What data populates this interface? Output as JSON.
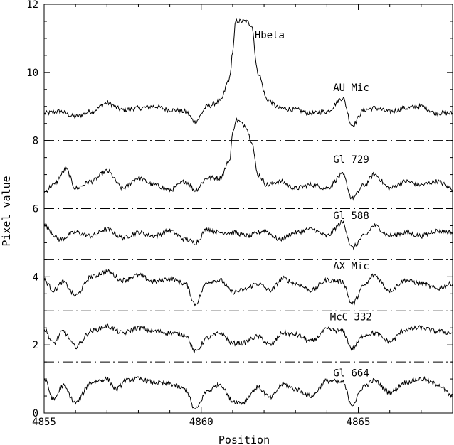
{
  "chart_data": {
    "type": "line",
    "title": "",
    "xlabel": "Position",
    "ylabel": "Pixel value",
    "xlim": [
      4855,
      4868
    ],
    "ylim": [
      0,
      12
    ],
    "x_ticks": [
      4855,
      4860,
      4865
    ],
    "y_ticks": [
      0,
      2,
      4,
      6,
      8,
      10,
      12
    ],
    "grid": false,
    "annotations": [
      {
        "text": "Hbeta",
        "x": 4861.7,
        "y": 11.0
      }
    ],
    "separators": [
      8.0,
      6.0,
      4.5,
      3.0,
      1.5
    ],
    "series": [
      {
        "name": "AU Mic",
        "label_x": 4864.2,
        "label_y": 9.45,
        "baseline": 8.85,
        "x": [
          4855.0,
          4855.5,
          4856.0,
          4856.5,
          4857.0,
          4857.5,
          4858.0,
          4858.5,
          4859.0,
          4859.5,
          4859.8,
          4860.2,
          4860.6,
          4860.9,
          4861.0,
          4861.1,
          4861.4,
          4861.6,
          4861.8,
          4862.1,
          4862.5,
          4863.0,
          4863.5,
          4864.0,
          4864.5,
          4864.8,
          4865.2,
          4865.5,
          4866.0,
          4866.5,
          4867.0,
          4867.5,
          4868.0
        ],
        "y": [
          8.8,
          8.85,
          8.7,
          8.85,
          9.1,
          8.9,
          8.95,
          9.0,
          8.9,
          8.85,
          8.55,
          9.0,
          9.15,
          9.8,
          10.6,
          11.5,
          11.5,
          11.4,
          10.0,
          9.2,
          8.95,
          8.9,
          8.8,
          8.85,
          9.25,
          8.45,
          8.9,
          8.95,
          8.85,
          8.95,
          9.0,
          8.8,
          8.8
        ]
      },
      {
        "name": "Gl 729",
        "label_x": 4864.2,
        "label_y": 7.35,
        "baseline": 6.7,
        "x": [
          4855.0,
          4855.3,
          4855.7,
          4856.0,
          4856.5,
          4857.0,
          4857.5,
          4858.0,
          4858.5,
          4859.0,
          4859.5,
          4859.8,
          4860.2,
          4860.6,
          4860.9,
          4861.0,
          4861.1,
          4861.4,
          4861.6,
          4861.8,
          4862.1,
          4862.5,
          4863.0,
          4863.5,
          4864.0,
          4864.5,
          4864.8,
          4865.2,
          4865.5,
          4866.0,
          4866.5,
          4867.0,
          4867.5,
          4868.0
        ],
        "y": [
          6.5,
          6.7,
          7.15,
          6.6,
          6.8,
          7.1,
          6.6,
          6.9,
          6.7,
          6.55,
          6.8,
          6.55,
          6.9,
          6.9,
          7.4,
          8.2,
          8.6,
          8.45,
          8.0,
          7.0,
          6.7,
          6.8,
          6.6,
          6.7,
          6.6,
          7.0,
          6.3,
          6.7,
          7.0,
          6.6,
          6.8,
          6.7,
          6.8,
          6.6
        ]
      },
      {
        "name": "Gl 588",
        "label_x": 4864.2,
        "label_y": 5.7,
        "baseline": 5.25,
        "x": [
          4855.0,
          4855.5,
          4856.0,
          4856.5,
          4857.0,
          4857.5,
          4858.0,
          4858.5,
          4859.0,
          4859.5,
          4859.8,
          4860.2,
          4860.6,
          4861.0,
          4861.5,
          4862.0,
          4862.5,
          4863.0,
          4863.5,
          4864.0,
          4864.5,
          4864.8,
          4865.2,
          4865.5,
          4866.0,
          4866.5,
          4867.0,
          4867.5,
          4868.0
        ],
        "y": [
          5.5,
          5.1,
          5.3,
          5.2,
          5.4,
          5.15,
          5.3,
          5.2,
          5.35,
          5.1,
          5.0,
          5.4,
          5.3,
          5.3,
          5.2,
          5.35,
          5.1,
          5.3,
          5.4,
          5.2,
          5.6,
          4.85,
          5.2,
          5.5,
          5.2,
          5.3,
          5.2,
          5.35,
          5.3
        ]
      },
      {
        "name": "AX Mic",
        "label_x": 4864.2,
        "label_y": 4.22,
        "baseline": 3.85,
        "x": [
          4855.0,
          4855.3,
          4855.6,
          4856.0,
          4856.5,
          4857.0,
          4857.5,
          4858.0,
          4858.5,
          4859.0,
          4859.5,
          4859.8,
          4860.2,
          4860.6,
          4861.0,
          4861.3,
          4861.8,
          4862.2,
          4862.6,
          4863.0,
          4863.5,
          4864.0,
          4864.5,
          4864.8,
          4865.2,
          4865.5,
          4866.0,
          4866.5,
          4867.0,
          4867.5,
          4868.0
        ],
        "y": [
          3.9,
          3.6,
          3.85,
          3.45,
          4.0,
          4.15,
          3.9,
          4.05,
          3.85,
          3.95,
          3.8,
          3.2,
          3.85,
          3.9,
          3.55,
          3.6,
          3.8,
          3.6,
          3.95,
          3.8,
          3.6,
          3.9,
          3.85,
          3.2,
          3.75,
          4.05,
          3.6,
          3.9,
          3.8,
          3.65,
          3.8
        ]
      },
      {
        "name": "McC 332",
        "label_x": 4864.1,
        "label_y": 2.72,
        "baseline": 2.35,
        "x": [
          4855.0,
          4855.3,
          4855.6,
          4856.0,
          4856.5,
          4857.0,
          4857.5,
          4858.0,
          4858.5,
          4859.0,
          4859.5,
          4859.8,
          4860.2,
          4860.6,
          4861.0,
          4861.3,
          4861.8,
          4862.2,
          4862.6,
          4863.0,
          4863.5,
          4864.0,
          4864.5,
          4864.8,
          4865.2,
          4865.5,
          4866.0,
          4866.5,
          4867.0,
          4867.5,
          4868.0
        ],
        "y": [
          2.45,
          2.05,
          2.4,
          1.95,
          2.4,
          2.55,
          2.35,
          2.5,
          2.4,
          2.35,
          2.3,
          1.8,
          2.2,
          2.35,
          2.05,
          2.05,
          2.25,
          2.0,
          2.35,
          2.3,
          2.1,
          2.45,
          2.4,
          1.9,
          2.3,
          2.35,
          2.1,
          2.45,
          2.5,
          2.4,
          2.35
        ]
      },
      {
        "name": "Gl 664",
        "label_x": 4864.2,
        "label_y": 1.08,
        "baseline": 1.0,
        "x": [
          4855.0,
          4855.3,
          4855.6,
          4856.0,
          4856.5,
          4857.0,
          4857.3,
          4857.6,
          4858.0,
          4858.5,
          4859.0,
          4859.5,
          4859.8,
          4860.2,
          4860.6,
          4861.0,
          4861.3,
          4861.8,
          4862.2,
          4862.6,
          4863.0,
          4863.5,
          4864.0,
          4864.5,
          4864.8,
          4865.2,
          4865.5,
          4866.0,
          4866.5,
          4867.0,
          4867.5,
          4868.0
        ],
        "y": [
          1.0,
          0.4,
          0.8,
          0.3,
          0.9,
          1.0,
          0.7,
          0.95,
          1.0,
          0.9,
          0.85,
          0.7,
          0.1,
          0.65,
          0.85,
          0.35,
          0.3,
          0.75,
          0.45,
          0.85,
          0.7,
          0.5,
          0.95,
          0.9,
          0.25,
          0.8,
          0.95,
          0.6,
          0.9,
          1.0,
          0.85,
          0.5
        ]
      }
    ]
  }
}
